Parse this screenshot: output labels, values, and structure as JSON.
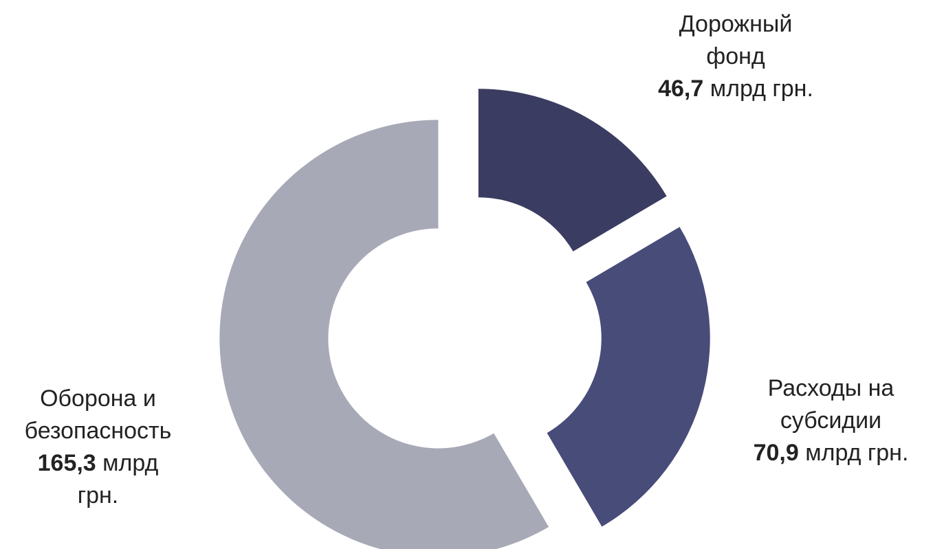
{
  "chart_data": {
    "type": "pie",
    "style": "exploded-donut",
    "unit": "млрд грн.",
    "slices": [
      {
        "label_lines": [
          "Дорожный",
          "фонд"
        ],
        "value": 46.7,
        "value_text": "46,7",
        "unit_text": "млрд грн.",
        "unit_lines": [
          "млрд грн."
        ],
        "color": "#3b3c61"
      },
      {
        "label_lines": [
          "Расходы на",
          "субсидии"
        ],
        "value": 70.9,
        "value_text": "70,9",
        "unit_text": "млрд грн.",
        "unit_lines": [
          "млрд грн."
        ],
        "color": "#484c79"
      },
      {
        "label_lines": [
          "Оборона и",
          "безопасность"
        ],
        "value": 165.3,
        "value_text": "165,3",
        "unit_text": "млрд грн.",
        "unit_lines": [
          "млрд",
          "грн."
        ],
        "color": "#a8a9b6"
      }
    ]
  }
}
